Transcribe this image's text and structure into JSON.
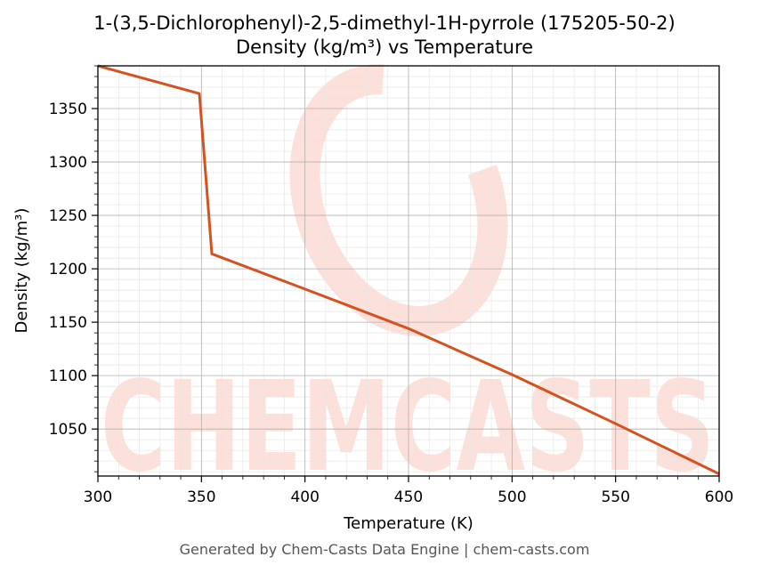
{
  "chart_data": {
    "type": "line",
    "title": "1-(3,5-Dichlorophenyl)-2,5-dimethyl-1H-pyrrole (175205-50-2)",
    "subtitle": "Density (kg/m³) vs Temperature",
    "xlabel": "Temperature (K)",
    "ylabel": "Density (kg/m³)",
    "xlim": [
      300,
      600
    ],
    "ylim": [
      1006,
      1390
    ],
    "x_ticks": [
      300,
      350,
      400,
      450,
      500,
      550,
      600
    ],
    "y_ticks": [
      1050,
      1100,
      1150,
      1200,
      1250,
      1300,
      1350
    ],
    "grid": true,
    "series": [
      {
        "color": "#d4521f",
        "x": [
          300,
          349,
          355,
          400,
          450,
          500,
          550,
          600
        ],
        "values": [
          1390,
          1364,
          1214,
          1181,
          1144,
          1101,
          1055,
          1008
        ]
      }
    ],
    "watermark": "CHEMCASTS"
  },
  "footer": "Generated by Chem-Casts Data Engine | chem-casts.com",
  "colors": {
    "line": "#d4521f",
    "watermark": "#fde0d9",
    "grid_major": "#b0b0b0",
    "grid_minor": "#e6e6e6"
  }
}
